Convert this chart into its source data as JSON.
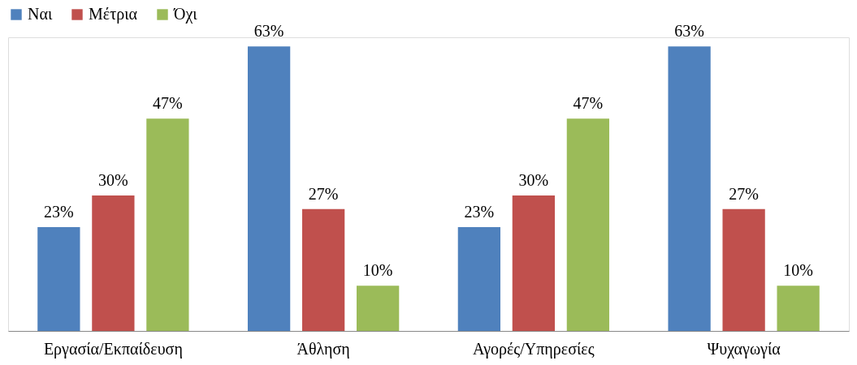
{
  "chart_data": {
    "type": "bar",
    "categories": [
      "Εργασία/Εκπαίδευση",
      "Άθληση",
      "Αγορές/Υπηρεσίες",
      "Ψυχαγωγία"
    ],
    "series": [
      {
        "name": "Ναι",
        "color": "#4f81bd",
        "values": [
          23,
          63,
          23,
          63
        ],
        "value_labels": [
          "23%",
          "63%",
          "23%",
          "63%"
        ]
      },
      {
        "name": "Μέτρια",
        "color": "#c0504d",
        "values": [
          30,
          27,
          30,
          27
        ],
        "value_labels": [
          "30%",
          "27%",
          "30%",
          "27%"
        ]
      },
      {
        "name": "Όχι",
        "color": "#9bbb59",
        "values": [
          47,
          10,
          47,
          10
        ],
        "value_labels": [
          "47%",
          "10%",
          "47%",
          "10%"
        ]
      }
    ],
    "legend": "top",
    "grid": false,
    "tick_labels": "x"
  }
}
